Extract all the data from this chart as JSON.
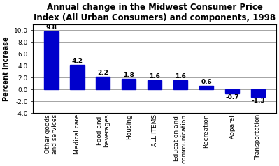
{
  "title": "Annual change in the Midwest Consumer Price\nIndex (All Urban Consumers) and components, 1998",
  "categories": [
    "Other goods\nand services",
    "Medical care",
    "Food and\nbeverages",
    "Housing",
    "ALL ITEMS",
    "Education and\ncommunication",
    "Recreation",
    "Apparel",
    "Transportation"
  ],
  "values": [
    9.8,
    4.2,
    2.2,
    1.8,
    1.6,
    1.6,
    0.6,
    -0.7,
    -1.3
  ],
  "bar_color": "#0000CC",
  "ylabel": "Percent increase",
  "ylim": [
    -4.0,
    11.0
  ],
  "yticks": [
    -4.0,
    -2.0,
    0.0,
    2.0,
    4.0,
    6.0,
    8.0,
    10.0
  ],
  "background_color": "#ffffff",
  "label_fontsize": 6.5,
  "title_fontsize": 8.5,
  "tick_fontsize": 6.5,
  "ylabel_fontsize": 7
}
